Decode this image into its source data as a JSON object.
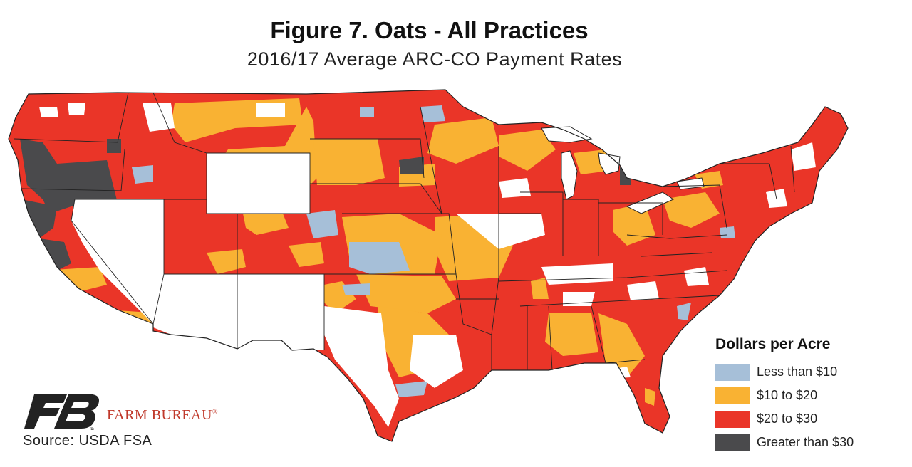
{
  "title": "Figure 7. Oats - All Practices",
  "subtitle": "2016/17 Average ARC-CO Payment Rates",
  "legend": {
    "title": "Dollars per Acre",
    "items": [
      {
        "label": "Less than $10",
        "color": "#a6bfd8"
      },
      {
        "label": "$10 to $20",
        "color": "#f9b233"
      },
      {
        "label": "$20 to $30",
        "color": "#ea3528"
      },
      {
        "label": "Greater than $30",
        "color": "#4a4a4c"
      }
    ]
  },
  "logo": {
    "text": "FARM BUREAU",
    "mark": "®",
    "brand_color": "#c0392b"
  },
  "source": "Source: USDA FSA"
}
